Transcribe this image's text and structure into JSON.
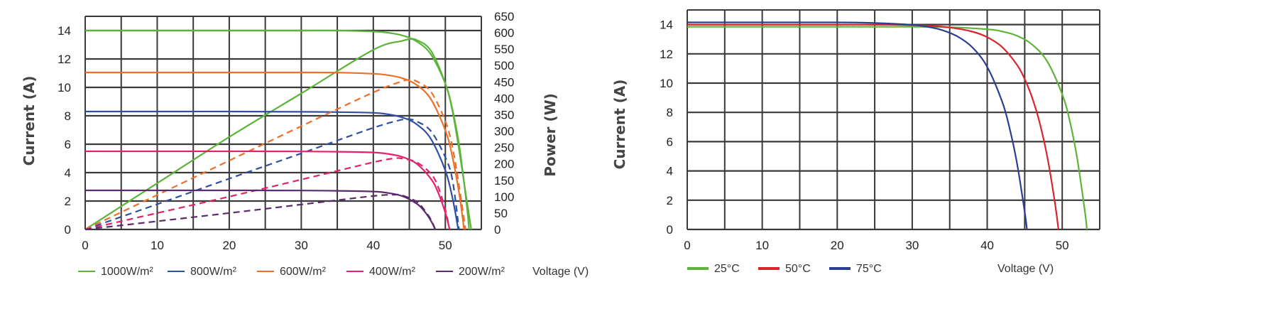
{
  "chart_data": [
    {
      "type": "line",
      "xlabel": "Voltage (V)",
      "ylabel": "Current (A)",
      "y2label": "Power (W)",
      "xlim": [
        0,
        55
      ],
      "ylim": [
        0,
        15
      ],
      "y2lim": [
        0,
        650
      ],
      "grid": true,
      "legend_position": "bottom",
      "x_ticks": [
        "0",
        "10",
        "20",
        "30",
        "40",
        "50"
      ],
      "y_ticks": [
        "0",
        "2",
        "4",
        "6",
        "8",
        "10",
        "12",
        "14"
      ],
      "y2_ticks": [
        "0",
        "50",
        "100",
        "150",
        "200",
        "250",
        "300",
        "350",
        "400",
        "450",
        "500",
        "550",
        "600",
        "650"
      ],
      "series": [
        {
          "name": "1000W/m²",
          "color": "#5db43a",
          "current_style": "solid",
          "power_style": "solid",
          "current": [
            [
              0,
              14
            ],
            [
              10,
              14
            ],
            [
              20,
              14
            ],
            [
              30,
              14
            ],
            [
              35,
              14
            ],
            [
              40,
              13.93
            ],
            [
              42,
              13.85
            ],
            [
              44,
              13.66
            ],
            [
              46,
              13.24
            ],
            [
              48,
              12.32
            ],
            [
              50,
              10.26
            ],
            [
              51,
              8.42
            ],
            [
              52,
              5.67
            ],
            [
              53,
              1.58
            ],
            [
              53.3,
              0
            ]
          ],
          "power": [
            [
              0,
              0
            ],
            [
              10,
              141
            ],
            [
              20,
              282
            ],
            [
              30,
              415
            ],
            [
              40,
              548
            ],
            [
              44,
              575
            ],
            [
              45,
              580
            ],
            [
              46,
              578
            ],
            [
              48,
              545
            ],
            [
              50,
              445
            ],
            [
              51,
              360
            ],
            [
              52,
              230
            ],
            [
              53,
              85
            ],
            [
              53.6,
              0
            ]
          ]
        },
        {
          "name": "800W/m²",
          "color": "#2f4fa0",
          "current_style": "solid",
          "power_style": "dashed",
          "current": [
            [
              0,
              8.3
            ],
            [
              10,
              8.3
            ],
            [
              20,
              8.3
            ],
            [
              30,
              8.28
            ],
            [
              35,
              8.26
            ],
            [
              40,
              8.21
            ],
            [
              42,
              8.11
            ],
            [
              44,
              7.89
            ],
            [
              46,
              7.41
            ],
            [
              48,
              6.37
            ],
            [
              50,
              4.15
            ],
            [
              51,
              2.2
            ],
            [
              51.8,
              0
            ]
          ],
          "power": [
            [
              0,
              0
            ],
            [
              10,
              77
            ],
            [
              20,
              155
            ],
            [
              30,
              232
            ],
            [
              40,
              310
            ],
            [
              44,
              335
            ],
            [
              45,
              336
            ],
            [
              46,
              330
            ],
            [
              48,
              300
            ],
            [
              50,
              220
            ],
            [
              51,
              150
            ],
            [
              51.9,
              0
            ]
          ]
        },
        {
          "name": "600W/m²",
          "color": "#ec6f2a",
          "current_style": "solid",
          "power_style": "dashed",
          "current": [
            [
              0,
              11.05
            ],
            [
              10,
              11.05
            ],
            [
              20,
              11.05
            ],
            [
              30,
              11.05
            ],
            [
              35,
              11.04
            ],
            [
              40,
              10.96
            ],
            [
              42,
              10.86
            ],
            [
              44,
              10.65
            ],
            [
              46,
              10.18
            ],
            [
              48,
              9.17
            ],
            [
              50,
              6.98
            ],
            [
              51,
              5.08
            ],
            [
              52,
              2.27
            ],
            [
              52.6,
              0
            ]
          ],
          "power": [
            [
              0,
              0
            ],
            [
              10,
              105
            ],
            [
              20,
              210
            ],
            [
              30,
              315
            ],
            [
              40,
              418
            ],
            [
              44,
              452
            ],
            [
              45,
              456
            ],
            [
              46,
              452
            ],
            [
              48,
              420
            ],
            [
              50,
              330
            ],
            [
              51,
              250
            ],
            [
              52,
              120
            ],
            [
              52.8,
              0
            ]
          ]
        },
        {
          "name": "400W/m²",
          "color": "#e2226c",
          "current_style": "solid",
          "power_style": "dashed",
          "current": [
            [
              0,
              5.5
            ],
            [
              10,
              5.5
            ],
            [
              20,
              5.5
            ],
            [
              30,
              5.49
            ],
            [
              35,
              5.47
            ],
            [
              40,
              5.42
            ],
            [
              42,
              5.32
            ],
            [
              44,
              5.11
            ],
            [
              46,
              4.63
            ],
            [
              48,
              3.56
            ],
            [
              49,
              2.6
            ],
            [
              50,
              1.17
            ],
            [
              50.6,
              0
            ]
          ],
          "power": [
            [
              0,
              0
            ],
            [
              10,
              50
            ],
            [
              20,
              100
            ],
            [
              30,
              152
            ],
            [
              40,
              205
            ],
            [
              43,
              217
            ],
            [
              44,
              216
            ],
            [
              46,
              205
            ],
            [
              48,
              170
            ],
            [
              49,
              130
            ],
            [
              50,
              60
            ],
            [
              50.6,
              0
            ]
          ]
        },
        {
          "name": "200W/m²",
          "color": "#5b2a6e",
          "current_style": "solid",
          "power_style": "dashed",
          "current": [
            [
              0,
              2.75
            ],
            [
              10,
              2.75
            ],
            [
              20,
              2.75
            ],
            [
              30,
              2.74
            ],
            [
              35,
              2.72
            ],
            [
              40,
              2.67
            ],
            [
              42,
              2.57
            ],
            [
              44,
              2.35
            ],
            [
              46,
              1.82
            ],
            [
              47,
              1.34
            ],
            [
              48,
              0.61
            ],
            [
              48.6,
              0
            ]
          ],
          "power": [
            [
              0,
              0
            ],
            [
              10,
              25
            ],
            [
              20,
              50
            ],
            [
              30,
              76
            ],
            [
              40,
              102
            ],
            [
              43,
              106
            ],
            [
              44,
              104
            ],
            [
              46,
              85
            ],
            [
              47,
              62
            ],
            [
              48,
              30
            ],
            [
              48.6,
              0
            ]
          ]
        }
      ]
    },
    {
      "type": "line",
      "xlabel": "Voltage (V)",
      "ylabel": "Current (A)",
      "xlim": [
        0,
        55
      ],
      "ylim": [
        0,
        15
      ],
      "grid": true,
      "legend_position": "bottom",
      "x_ticks": [
        "0",
        "10",
        "20",
        "30",
        "40",
        "50"
      ],
      "y_ticks": [
        "0",
        "2",
        "4",
        "6",
        "8",
        "10",
        "12",
        "14"
      ],
      "series": [
        {
          "name": "25°C",
          "color": "#5db43a",
          "current": [
            [
              0,
              13.85
            ],
            [
              10,
              13.85
            ],
            [
              20,
              13.85
            ],
            [
              30,
              13.85
            ],
            [
              35,
              13.82
            ],
            [
              40,
              13.68
            ],
            [
              42,
              13.53
            ],
            [
              44,
              13.23
            ],
            [
              46,
              12.63
            ],
            [
              48,
              11.48
            ],
            [
              50,
              9.24
            ],
            [
              51,
              7.44
            ],
            [
              52,
              4.85
            ],
            [
              53,
              1.32
            ],
            [
              53.3,
              0
            ]
          ]
        },
        {
          "name": "50°C",
          "color": "#d7262e",
          "current": [
            [
              0,
              14.0
            ],
            [
              10,
              14.0
            ],
            [
              20,
              14.0
            ],
            [
              25,
              14.0
            ],
            [
              30,
              13.96
            ],
            [
              32,
              13.92
            ],
            [
              35,
              13.8
            ],
            [
              38,
              13.52
            ],
            [
              40,
              13.14
            ],
            [
              42,
              12.46
            ],
            [
              44,
              11.23
            ],
            [
              45,
              10.27
            ],
            [
              46,
              9.0
            ],
            [
              47,
              7.28
            ],
            [
              48,
              4.98
            ],
            [
              49,
              1.92
            ],
            [
              49.5,
              0
            ]
          ]
        },
        {
          "name": "75°C",
          "color": "#2b3f93",
          "current": [
            [
              0,
              14.15
            ],
            [
              10,
              14.15
            ],
            [
              20,
              14.15
            ],
            [
              25,
              14.11
            ],
            [
              30,
              13.98
            ],
            [
              32,
              13.85
            ],
            [
              34,
              13.62
            ],
            [
              36,
              13.2
            ],
            [
              38,
              12.45
            ],
            [
              40,
              11.11
            ],
            [
              42,
              8.72
            ],
            [
              43,
              6.89
            ],
            [
              44,
              4.44
            ],
            [
              45,
              1.18
            ],
            [
              45.3,
              0
            ]
          ]
        }
      ]
    }
  ]
}
